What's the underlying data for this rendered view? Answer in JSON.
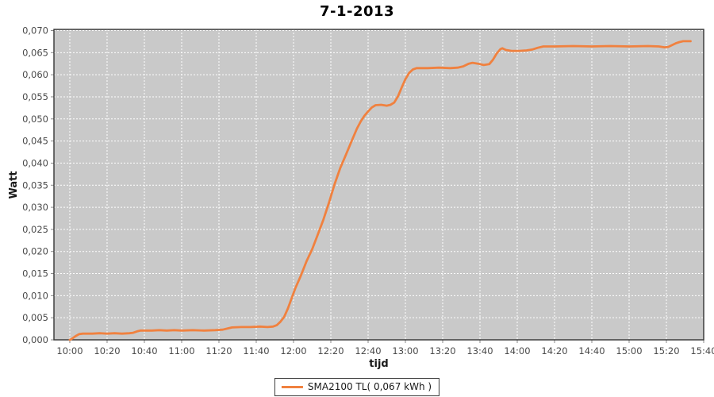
{
  "chart_data": {
    "type": "line",
    "title": "7-1-2013",
    "xlabel": "tijd",
    "ylabel": "Watt",
    "legend_label": "SMA2100 TL( 0,067 kWh )",
    "legend_position": "bottom-center",
    "grid": "on",
    "colors": {
      "series": "#F0813F",
      "plot_background": "#C9C9C9",
      "gridline": "#FFFFFF",
      "plot_border": "#333333",
      "tick_mark": "#888888",
      "tick_label": "#4a4a4a"
    },
    "y_tick_labels": [
      "0,000",
      "0,005",
      "0,010",
      "0,015",
      "0,020",
      "0,025",
      "0,030",
      "0,035",
      "0,040",
      "0,045",
      "0,050",
      "0,055",
      "0,060",
      "0,065",
      "0,070"
    ],
    "x_tick_labels": [
      "10:00",
      "10:20",
      "10:40",
      "11:00",
      "11:20",
      "11:40",
      "12:00",
      "12:20",
      "12:40",
      "13:00",
      "13:20",
      "13:40",
      "14:00",
      "14:20",
      "14:40",
      "15:00",
      "15:20",
      "15:40"
    ],
    "ylim": [
      0,
      0.07
    ],
    "y_tick_interval": 0.005,
    "x_range": [
      "10:00",
      "15:40"
    ],
    "x_tick_interval_minutes": 20,
    "series": [
      {
        "name": "SMA2100 TL",
        "total_kwh": "0,067",
        "points": [
          [
            "10:00",
            0.0
          ],
          [
            "10:01",
            0.0002
          ],
          [
            "10:03",
            0.0008
          ],
          [
            "10:05",
            0.0013
          ],
          [
            "10:07",
            0.0014
          ],
          [
            "10:12",
            0.0014
          ],
          [
            "10:16",
            0.0015
          ],
          [
            "10:20",
            0.0014
          ],
          [
            "10:24",
            0.0015
          ],
          [
            "10:28",
            0.0014
          ],
          [
            "10:32",
            0.0015
          ],
          [
            "10:34",
            0.0016
          ],
          [
            "10:36",
            0.0019
          ],
          [
            "10:38",
            0.0021
          ],
          [
            "10:44",
            0.0021
          ],
          [
            "10:48",
            0.0022
          ],
          [
            "10:52",
            0.0021
          ],
          [
            "10:56",
            0.0022
          ],
          [
            "11:00",
            0.0021
          ],
          [
            "11:06",
            0.0022
          ],
          [
            "11:12",
            0.0021
          ],
          [
            "11:18",
            0.0022
          ],
          [
            "11:22",
            0.0023
          ],
          [
            "11:25",
            0.0026
          ],
          [
            "11:27",
            0.0028
          ],
          [
            "11:32",
            0.0029
          ],
          [
            "11:37",
            0.0029
          ],
          [
            "11:42",
            0.003
          ],
          [
            "11:46",
            0.0029
          ],
          [
            "11:49",
            0.003
          ],
          [
            "11:51",
            0.0033
          ],
          [
            "11:53",
            0.0041
          ],
          [
            "11:55",
            0.0052
          ],
          [
            "11:57",
            0.0071
          ],
          [
            "11:59",
            0.0094
          ],
          [
            "12:01",
            0.0117
          ],
          [
            "12:04",
            0.0146
          ],
          [
            "12:07",
            0.0178
          ],
          [
            "12:10",
            0.0205
          ],
          [
            "12:13",
            0.0238
          ],
          [
            "12:16",
            0.0272
          ],
          [
            "12:19",
            0.031
          ],
          [
            "12:22",
            0.0352
          ],
          [
            "12:25",
            0.0388
          ],
          [
            "12:28",
            0.0418
          ],
          [
            "12:31",
            0.0448
          ],
          [
            "12:34",
            0.0478
          ],
          [
            "12:36",
            0.0494
          ],
          [
            "12:38",
            0.0507
          ],
          [
            "12:40",
            0.0517
          ],
          [
            "12:42",
            0.0526
          ],
          [
            "12:44",
            0.0531
          ],
          [
            "12:47",
            0.0532
          ],
          [
            "12:50",
            0.053
          ],
          [
            "12:52",
            0.0532
          ],
          [
            "12:54",
            0.0537
          ],
          [
            "12:56",
            0.0551
          ],
          [
            "12:58",
            0.0571
          ],
          [
            "13:00",
            0.059
          ],
          [
            "13:02",
            0.0604
          ],
          [
            "13:04",
            0.0612
          ],
          [
            "13:06",
            0.0615
          ],
          [
            "13:12",
            0.0615
          ],
          [
            "13:18",
            0.0616
          ],
          [
            "13:24",
            0.0615
          ],
          [
            "13:28",
            0.0616
          ],
          [
            "13:31",
            0.0619
          ],
          [
            "13:34",
            0.0625
          ],
          [
            "13:36",
            0.0627
          ],
          [
            "13:39",
            0.0625
          ],
          [
            "13:42",
            0.0622
          ],
          [
            "13:45",
            0.0624
          ],
          [
            "13:47",
            0.0634
          ],
          [
            "13:49",
            0.0648
          ],
          [
            "13:51",
            0.0658
          ],
          [
            "13:52",
            0.066
          ],
          [
            "13:54",
            0.0656
          ],
          [
            "13:57",
            0.0654
          ],
          [
            "14:01",
            0.0654
          ],
          [
            "14:05",
            0.0655
          ],
          [
            "14:08",
            0.0657
          ],
          [
            "14:11",
            0.0661
          ],
          [
            "14:14",
            0.0664
          ],
          [
            "14:20",
            0.0664
          ],
          [
            "14:30",
            0.0665
          ],
          [
            "14:40",
            0.0664
          ],
          [
            "14:50",
            0.0665
          ],
          [
            "15:00",
            0.0664
          ],
          [
            "15:10",
            0.0665
          ],
          [
            "15:16",
            0.0664
          ],
          [
            "15:19",
            0.0662
          ],
          [
            "15:21",
            0.0663
          ],
          [
            "15:23",
            0.0667
          ],
          [
            "15:25",
            0.0671
          ],
          [
            "15:27",
            0.0674
          ],
          [
            "15:29",
            0.0676
          ],
          [
            "15:33",
            0.0676
          ]
        ]
      }
    ]
  }
}
